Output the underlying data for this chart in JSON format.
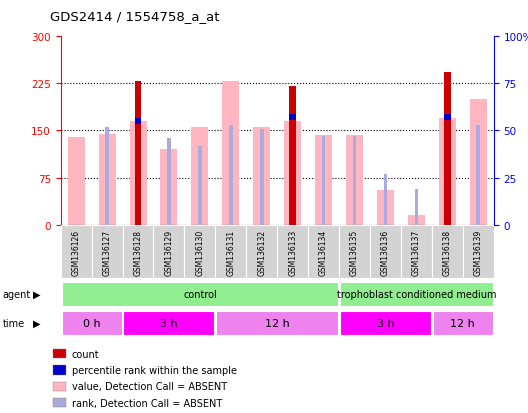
{
  "title": "GDS2414 / 1554758_a_at",
  "samples": [
    "GSM136126",
    "GSM136127",
    "GSM136128",
    "GSM136129",
    "GSM136130",
    "GSM136131",
    "GSM136132",
    "GSM136133",
    "GSM136134",
    "GSM136135",
    "GSM136136",
    "GSM136137",
    "GSM136138",
    "GSM136139"
  ],
  "sample_short": [
    "26",
    "27",
    "28",
    "29",
    "30",
    "31",
    "32",
    "33",
    "34",
    "35",
    "36",
    "37",
    "38",
    "39"
  ],
  "count_values": [
    0,
    0,
    228,
    0,
    0,
    0,
    0,
    220,
    0,
    0,
    0,
    0,
    243,
    0
  ],
  "rank_values": [
    0,
    0,
    55,
    0,
    0,
    0,
    0,
    57,
    0,
    0,
    0,
    0,
    57,
    0
  ],
  "absent_value_bars": [
    140,
    145,
    165,
    120,
    155,
    228,
    155,
    165,
    143,
    143,
    55,
    15,
    170,
    200
  ],
  "absent_rank_bars": [
    0,
    52,
    0,
    46,
    42,
    53,
    51,
    0,
    47,
    47,
    27,
    19,
    0,
    53
  ],
  "ylim_left": [
    0,
    300
  ],
  "ylim_right": [
    0,
    100
  ],
  "yticks_left": [
    0,
    75,
    150,
    225,
    300
  ],
  "yticks_right": [
    0,
    25,
    50,
    75,
    100
  ],
  "ytick_labels_right": [
    "0",
    "25",
    "50",
    "75",
    "100%"
  ],
  "agent_groups": [
    {
      "label": "control",
      "start": 0,
      "end": 9,
      "color": "#90EE90"
    },
    {
      "label": "trophoblast conditioned medium",
      "start": 9,
      "end": 14,
      "color": "#90EE90"
    }
  ],
  "time_groups": [
    {
      "label": "0 h",
      "start": 0,
      "end": 2,
      "color": "#EE82EE"
    },
    {
      "label": "3 h",
      "start": 2,
      "end": 5,
      "color": "#FF00FF"
    },
    {
      "label": "12 h",
      "start": 5,
      "end": 9,
      "color": "#EE82EE"
    },
    {
      "label": "3 h",
      "start": 9,
      "end": 12,
      "color": "#FF00FF"
    },
    {
      "label": "12 h",
      "start": 12,
      "end": 14,
      "color": "#EE82EE"
    }
  ],
  "count_color": "#CC0000",
  "rank_color": "#0000CC",
  "absent_value_color": "#FFB6C1",
  "absent_rank_color": "#AAAADD",
  "bg_color": "#FFFFFF",
  "cell_bg_color": "#D3D3D3",
  "legend_items": [
    {
      "label": "count",
      "color": "#CC0000"
    },
    {
      "label": "percentile rank within the sample",
      "color": "#0000CC"
    },
    {
      "label": "value, Detection Call = ABSENT",
      "color": "#FFB6C1"
    },
    {
      "label": "rank, Detection Call = ABSENT",
      "color": "#AAAADD"
    }
  ]
}
